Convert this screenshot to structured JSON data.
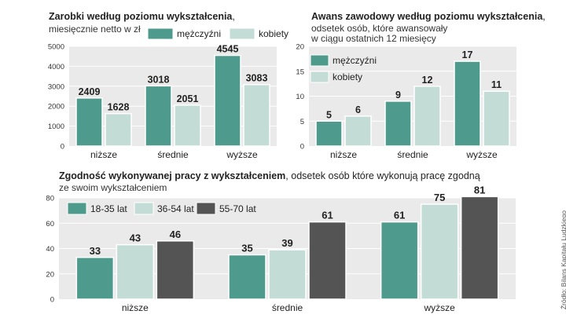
{
  "colors": {
    "men": "#4e9a8c",
    "women": "#c3ddd6",
    "age1": "#4e9a8c",
    "age2": "#c3ddd6",
    "age3": "#545454",
    "panel_bg": "#eaeaea",
    "grid": "#ffffff",
    "bar_stroke": "#ffffff"
  },
  "source": "Źródło: Bilans Kapitału Ludzkiego",
  "chart_data": [
    {
      "type": "bar",
      "title": "Zarobki według poziomu wykształcenia",
      "title_suffix": ",",
      "subtitle": "miesięcznie netto w zł",
      "categories": [
        "niższe",
        "średnie",
        "wyższe"
      ],
      "series": [
        {
          "name": "mężczyźni",
          "values": [
            2409,
            3018,
            4545
          ]
        },
        {
          "name": "kobiety",
          "values": [
            1628,
            2051,
            3083
          ]
        }
      ],
      "ylim": [
        0,
        5000
      ],
      "yticks": [
        "0",
        "1000",
        "2000",
        "3000",
        "4000",
        "5000"
      ],
      "grid": true,
      "legend": "top-right"
    },
    {
      "type": "bar",
      "title": "Awans zawodowy według poziomu wykształcenia",
      "title_suffix": ",",
      "subtitle": "odsetek osób, które awansowały",
      "subtitle2": "w ciągu ostatnich 12 miesięcy",
      "categories": [
        "niższe",
        "średnie",
        "wyższe"
      ],
      "series": [
        {
          "name": "mężczyźni",
          "values": [
            5,
            9,
            17
          ]
        },
        {
          "name": "kobiety",
          "values": [
            6,
            12,
            11
          ]
        }
      ],
      "ylim": [
        0,
        20
      ],
      "yticks": [
        "0",
        "5",
        "10",
        "15",
        "20"
      ],
      "grid": true,
      "legend": "top-left"
    },
    {
      "type": "bar",
      "title": "Zgodność wykonywanej pracy z wykształceniem",
      "title_suffix": ", odsetek osób które wykonują pracę zgodną",
      "subtitle": "ze swoim wykształceniem",
      "categories": [
        "niższe",
        "średnie",
        "wyższe"
      ],
      "series": [
        {
          "name": "18-35 lat",
          "values": [
            33,
            35,
            61
          ]
        },
        {
          "name": "36-54 lat",
          "values": [
            43,
            39,
            75
          ]
        },
        {
          "name": "55-70 lat",
          "values": [
            46,
            61,
            81
          ]
        }
      ],
      "ylim": [
        0,
        80
      ],
      "yticks": [
        "0",
        "20",
        "40",
        "60",
        "80"
      ],
      "grid": true,
      "legend": "top-left"
    }
  ]
}
